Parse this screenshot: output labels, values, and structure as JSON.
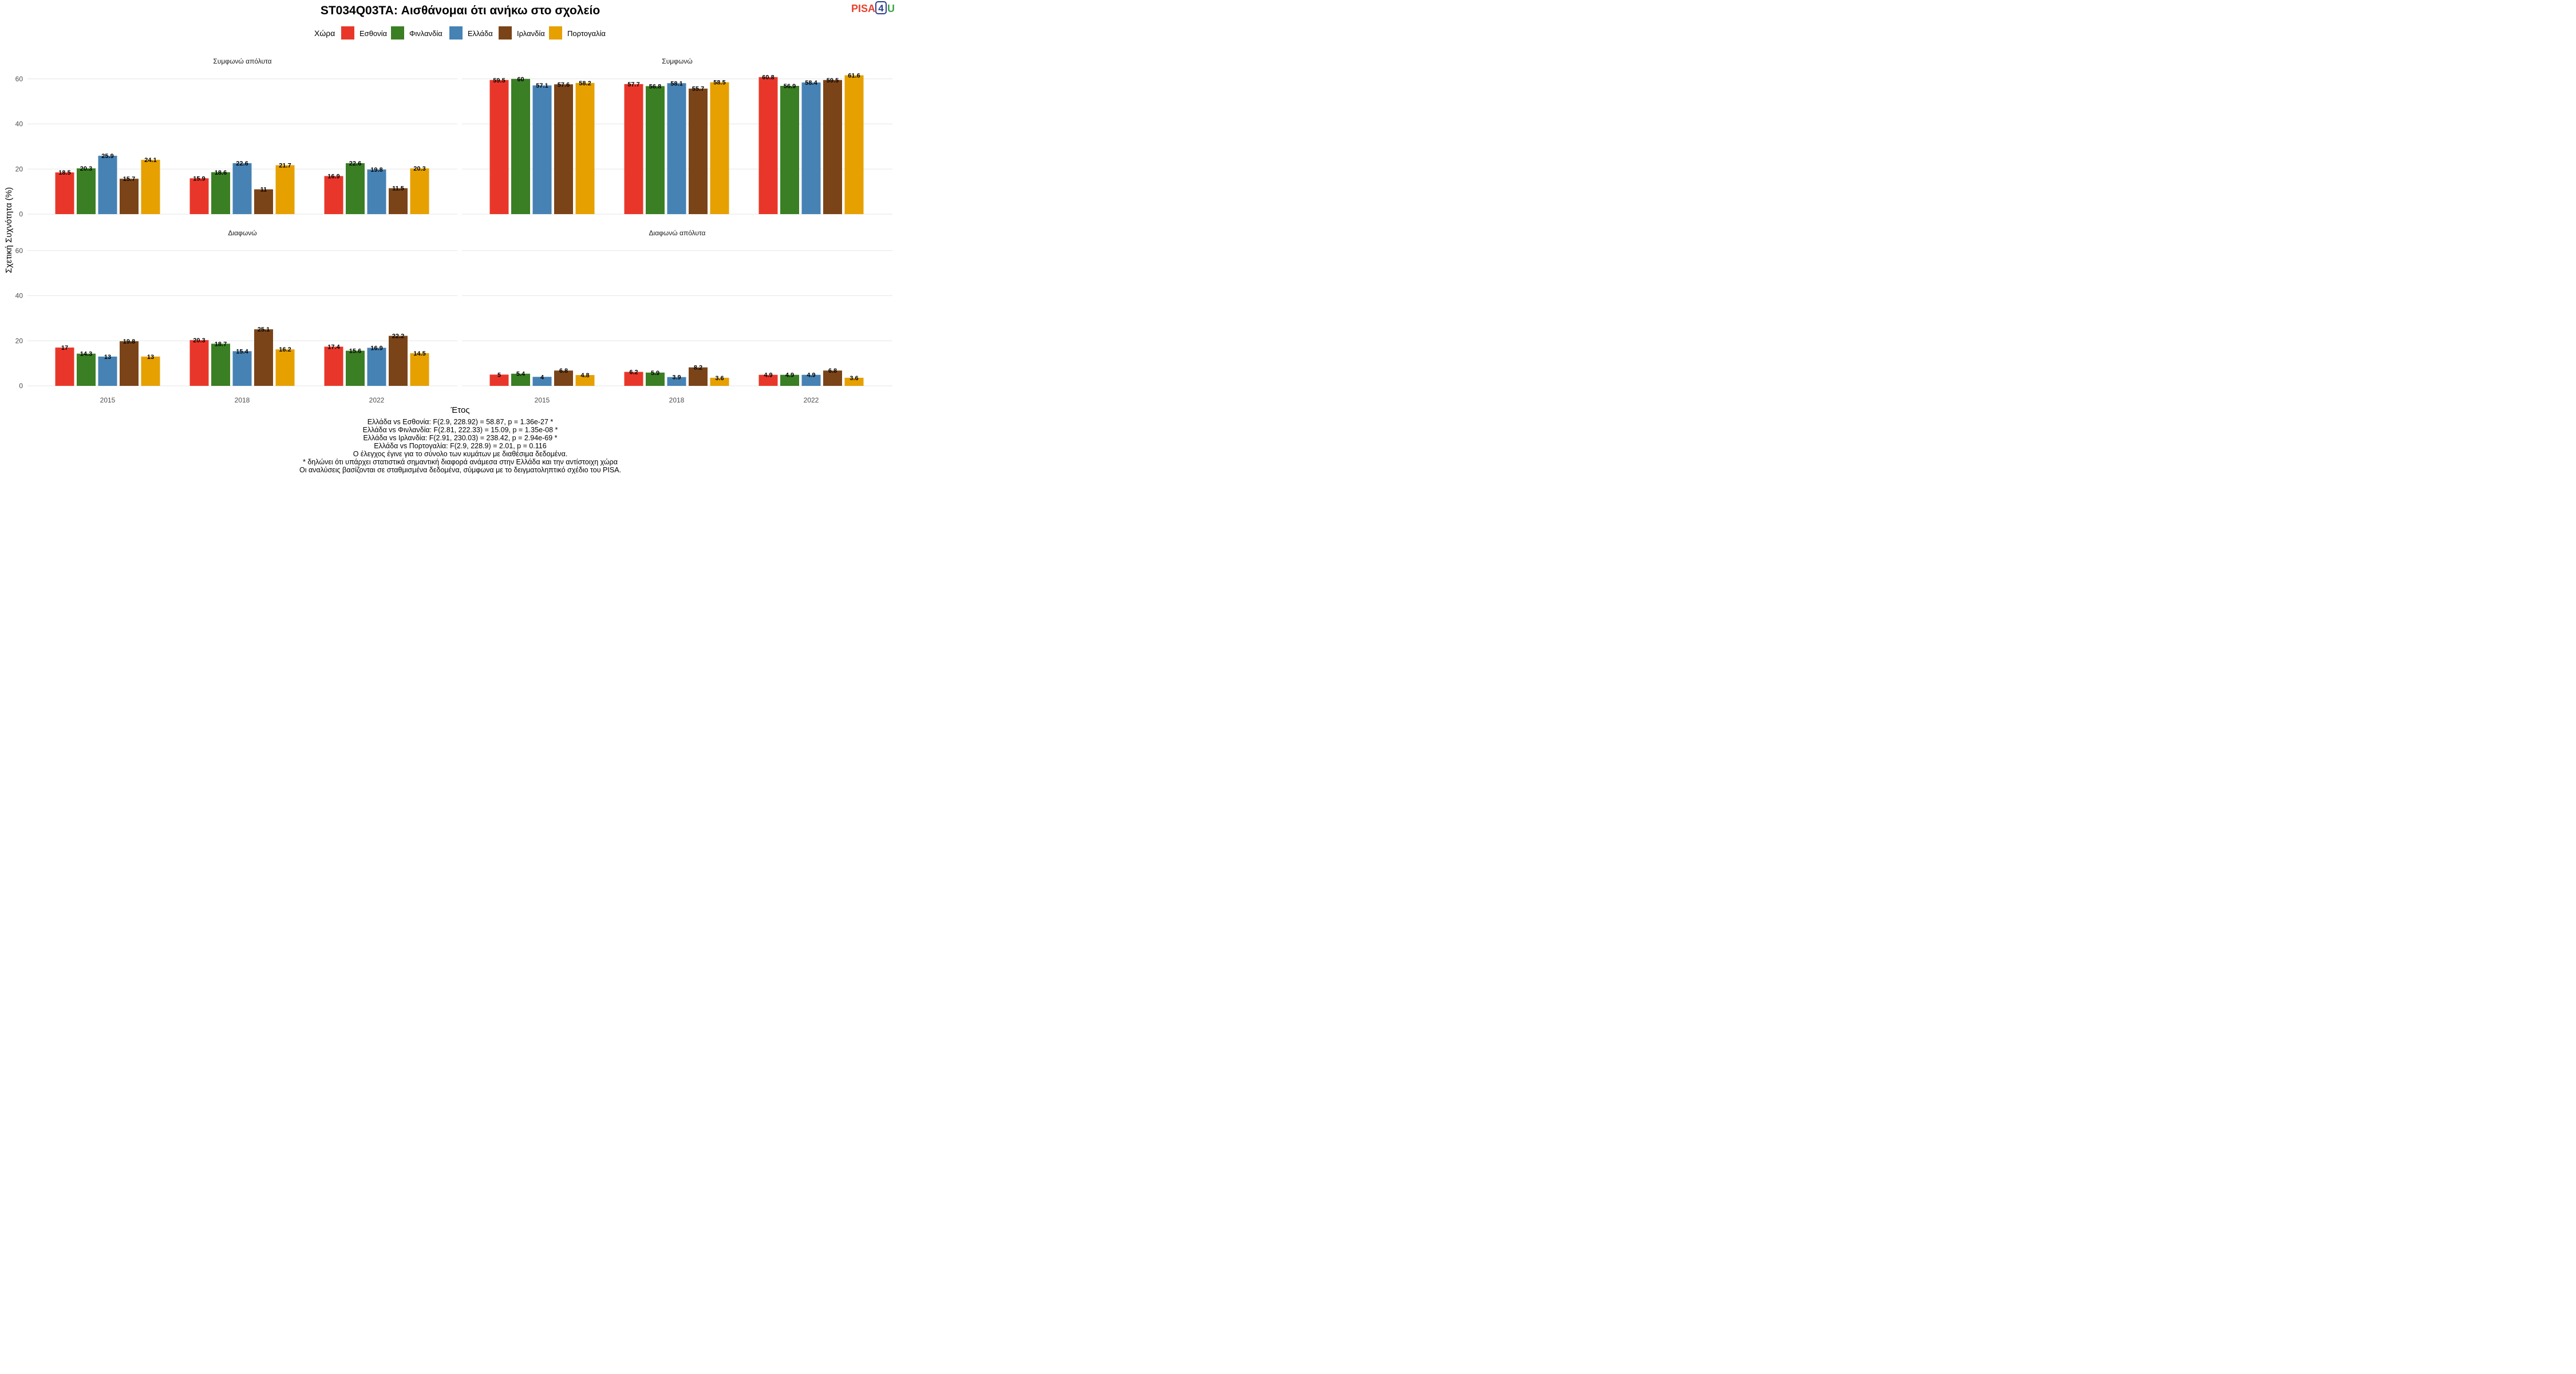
{
  "title": "ST034Q03TA: Αισθάνομαι ότι ανήκω στο σχολείο",
  "logo": {
    "pisa": "PISA",
    "four": "4",
    "u": "U"
  },
  "legend": {
    "title": "Χώρα",
    "items": [
      {
        "label": "Εσθονία",
        "color": "#e8372a"
      },
      {
        "label": "Φινλανδία",
        "color": "#3a7f24"
      },
      {
        "label": "Ελλάδα",
        "color": "#4682b4"
      },
      {
        "label": "Ιρλανδία",
        "color": "#7a4418"
      },
      {
        "label": "Πορτογαλία",
        "color": "#e6a000"
      }
    ]
  },
  "xlabel": "Έτος",
  "ylabel": "Σχετική Συχνότητα (%)",
  "notes": [
    "Ελλάδα vs Εσθονία: F(2.9, 228.92) = 58.87, p = 1.36e-27 *",
    "Ελλάδα vs Φινλανδία: F(2.81, 222.33) = 15.09, p = 1.35e-08 *",
    "Ελλάδα vs Ιρλανδία: F(2.91, 230.03) = 238.42, p = 2.94e-69 *",
    "Ελλάδα vs Πορτογαλία: F(2.9, 228.9) = 2.01, p = 0.116",
    "Ο έλεγχος έγινε για το σύνολο των κυμάτων με διαθέσιμα δεδομένα.",
    "* δηλώνει ότι υπάρχει στατιστικά σημαντική διαφορά ανάμεσα στην Ελλάδα και την αντίστοιχη χώρα",
    "Οι αναλύσεις βασίζονται σε σταθμισμένα δεδομένα, σύμφωνα με το δειγματοληπτικό σχέδιο του PISA."
  ],
  "chart_data": {
    "type": "bar",
    "categories": [
      "2015",
      "2018",
      "2022"
    ],
    "ylim": [
      0,
      60
    ],
    "yticks": [
      0,
      20,
      40,
      60
    ],
    "grid": true,
    "legend_position": "top",
    "series_names": [
      "Εσθονία",
      "Φινλανδία",
      "Ελλάδα",
      "Ιρλανδία",
      "Πορτογαλία"
    ],
    "panels": [
      {
        "title": "Συμφωνώ απόλυτα",
        "values": [
          [
            18.5,
            20.3,
            25.9,
            15.7,
            24.1
          ],
          [
            15.9,
            18.6,
            22.6,
            11,
            21.7
          ],
          [
            16.9,
            22.6,
            19.8,
            11.5,
            20.3
          ]
        ]
      },
      {
        "title": "Συμφωνώ",
        "values": [
          [
            59.5,
            60,
            57.1,
            57.6,
            58.2
          ],
          [
            57.7,
            56.8,
            58.1,
            55.7,
            58.5
          ],
          [
            60.8,
            56.9,
            58.4,
            59.5,
            61.6
          ]
        ]
      },
      {
        "title": "Διαφωνώ",
        "values": [
          [
            17,
            14.3,
            13,
            19.8,
            13
          ],
          [
            20.3,
            18.7,
            15.4,
            25.1,
            16.2
          ],
          [
            17.4,
            15.6,
            16.9,
            22.2,
            14.5
          ]
        ]
      },
      {
        "title": "Διαφωνώ απόλυτα",
        "values": [
          [
            5,
            5.4,
            4,
            6.8,
            4.8
          ],
          [
            6.2,
            5.9,
            3.9,
            8.2,
            3.6
          ],
          [
            4.9,
            4.9,
            4.9,
            6.8,
            3.6
          ]
        ]
      }
    ]
  }
}
